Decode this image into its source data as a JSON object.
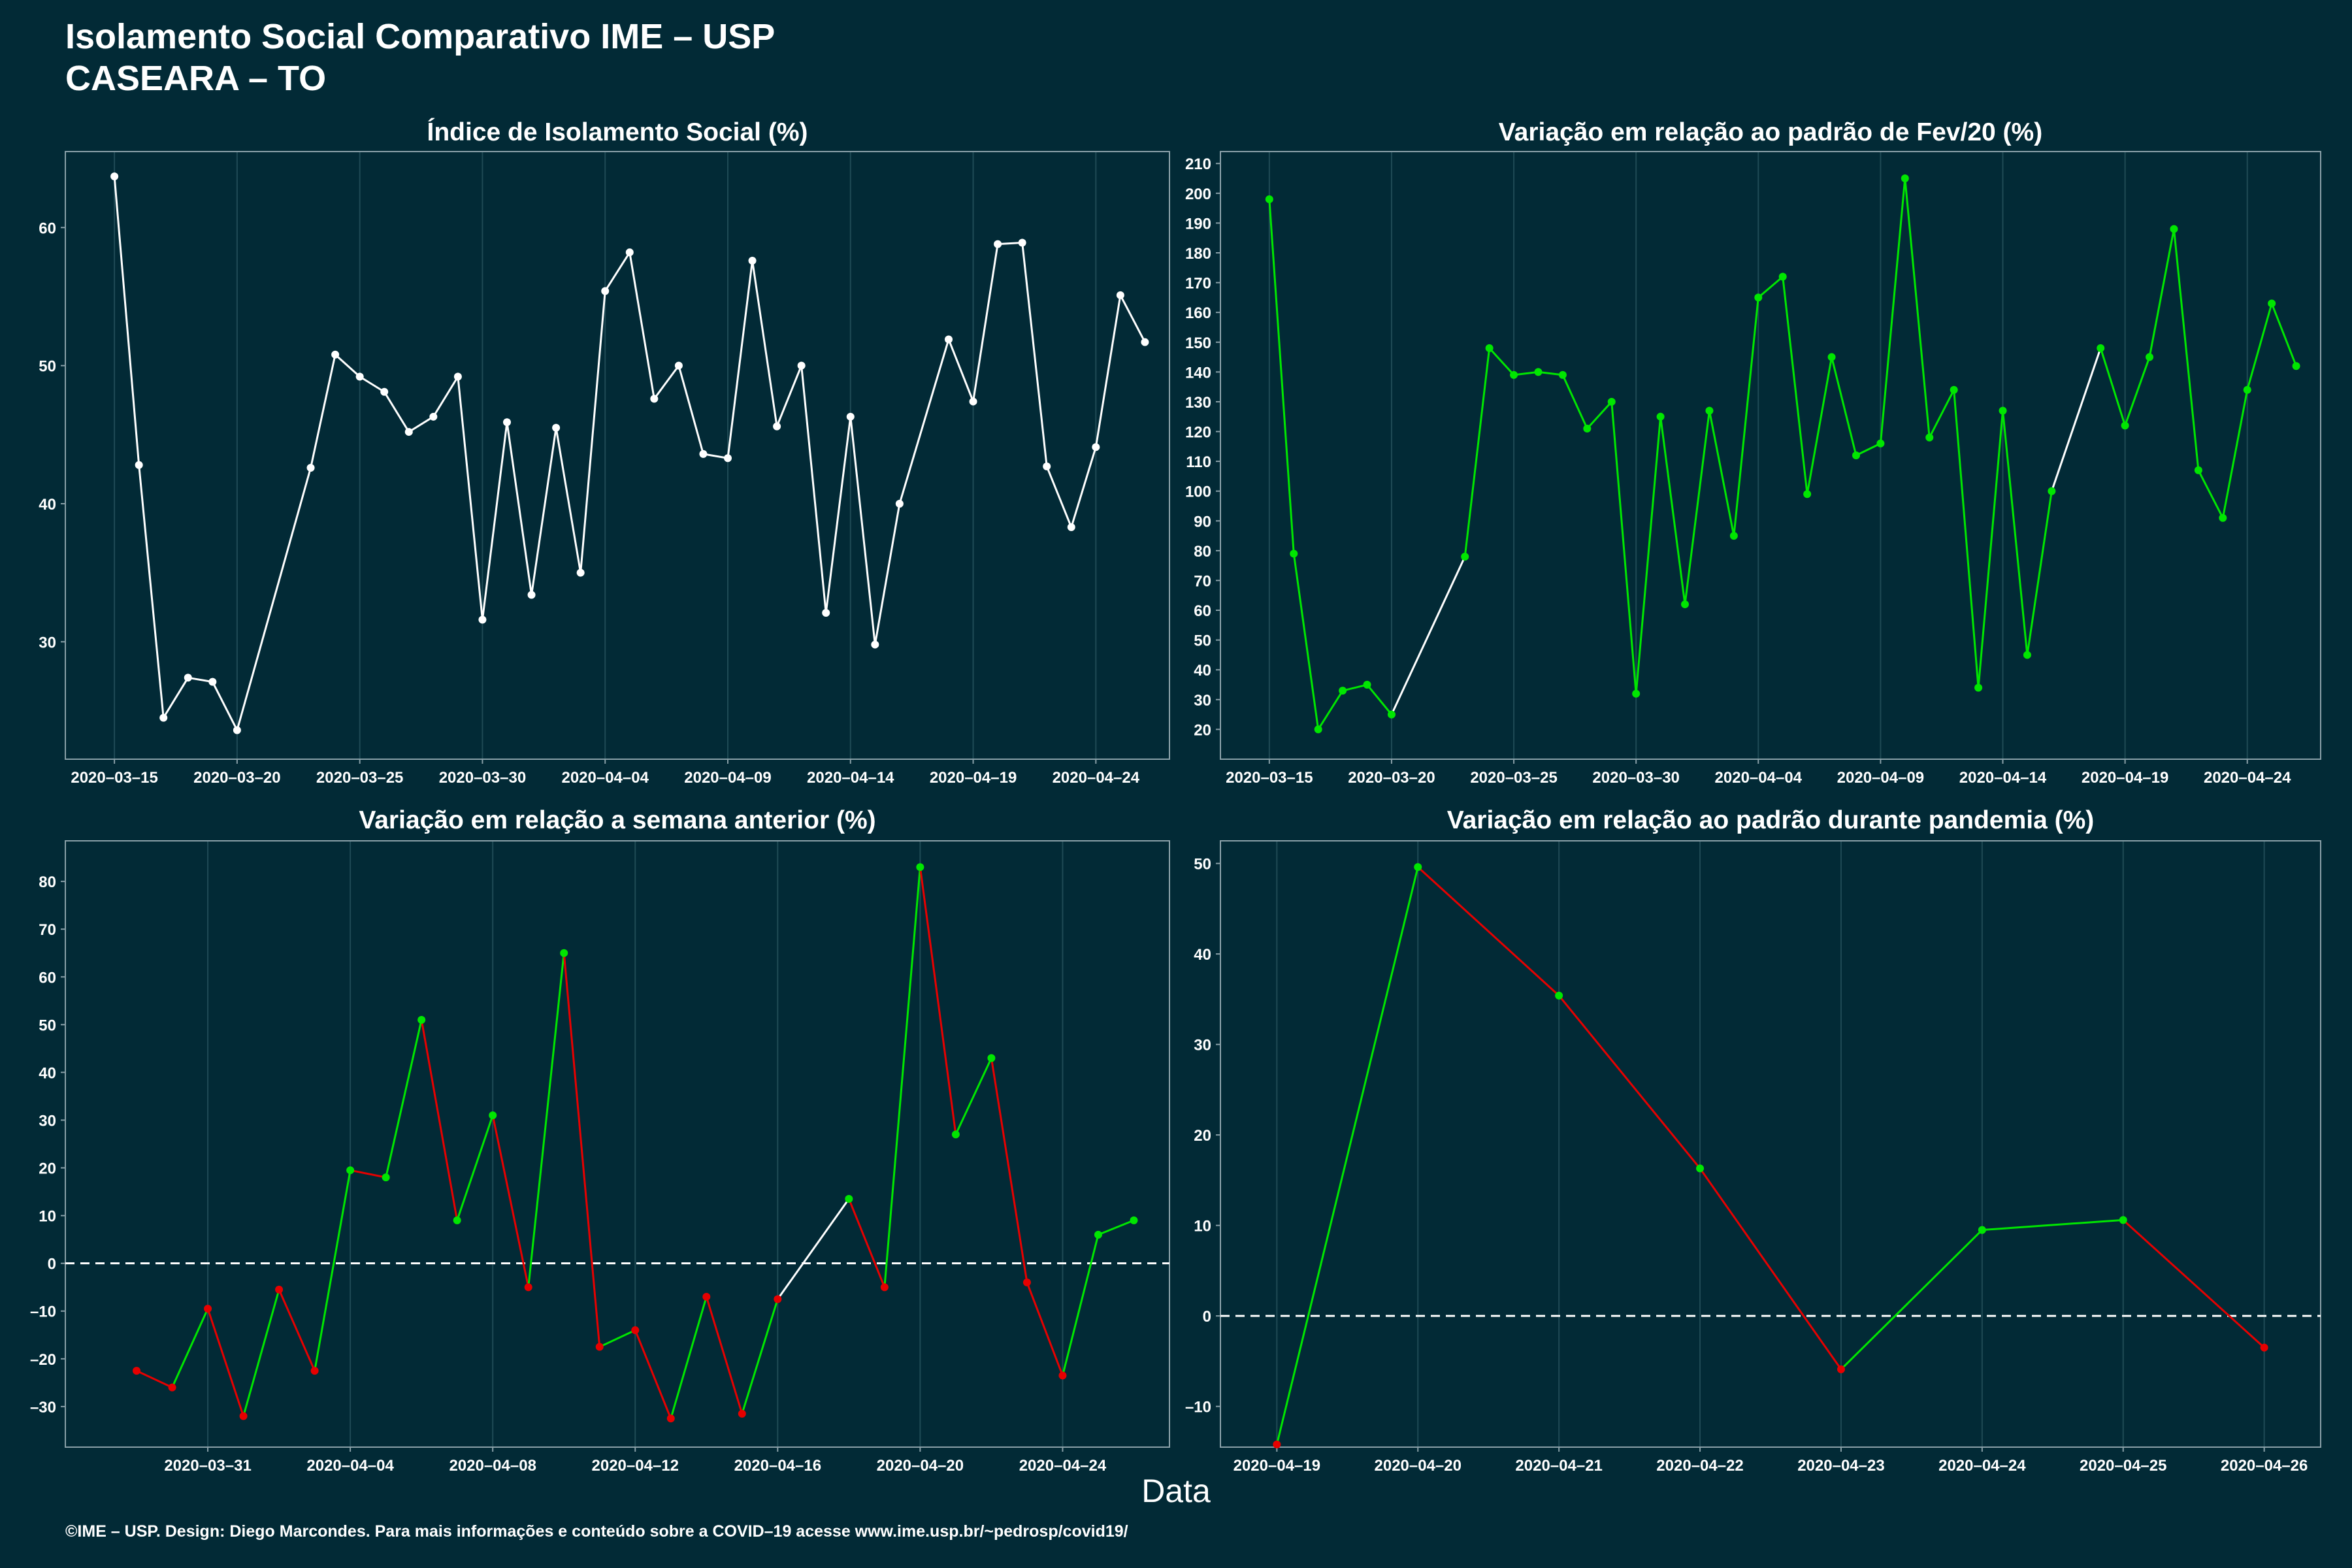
{
  "header": {
    "title_line1": "Isolamento Social Comparativo IME – USP",
    "title_line2": "CASEARA – TO"
  },
  "xlabel": "Data",
  "footer": "©IME – USP. Design: Diego Marcondes. Para mais informações e conteúdo sobre a COVID–19 acesse www.ime.usp.br/~pedrosp/covid19/",
  "colors": {
    "background": "#022a36",
    "neutral": "#ffffff",
    "positive": "#00e600",
    "negative": "#e60000",
    "grid": "#1f4a55",
    "axis": "#8aa0a8"
  },
  "chart_data": [
    {
      "id": "isolamento",
      "type": "line",
      "title": "Índice de Isolamento Social (%)",
      "color_mode": "neutral",
      "ylim": [
        21.5,
        65.5
      ],
      "yticks": [
        30,
        40,
        50,
        60
      ],
      "xlim": [
        "2020-03-13",
        "2020-04-27"
      ],
      "xticks": [
        "2020-03-15",
        "2020-03-20",
        "2020-03-25",
        "2020-03-30",
        "2020-04-04",
        "2020-04-09",
        "2020-04-14",
        "2020-04-19",
        "2020-04-24"
      ],
      "baseline": null,
      "grid": true,
      "x": [
        "2020-03-15",
        "2020-03-16",
        "2020-03-17",
        "2020-03-18",
        "2020-03-19",
        "2020-03-20",
        "2020-03-23",
        "2020-03-24",
        "2020-03-25",
        "2020-03-26",
        "2020-03-27",
        "2020-03-28",
        "2020-03-29",
        "2020-03-30",
        "2020-03-31",
        "2020-04-01",
        "2020-04-02",
        "2020-04-03",
        "2020-04-04",
        "2020-04-05",
        "2020-04-06",
        "2020-04-07",
        "2020-04-08",
        "2020-04-09",
        "2020-04-10",
        "2020-04-11",
        "2020-04-12",
        "2020-04-13",
        "2020-04-14",
        "2020-04-15",
        "2020-04-16",
        "2020-04-18",
        "2020-04-19",
        "2020-04-20",
        "2020-04-21",
        "2020-04-22",
        "2020-04-23",
        "2020-04-24",
        "2020-04-25",
        "2020-04-26"
      ],
      "y": [
        63.7,
        42.8,
        24.5,
        27.4,
        27.1,
        23.6,
        42.6,
        50.8,
        49.2,
        48.1,
        45.2,
        46.3,
        49.2,
        31.6,
        45.9,
        33.4,
        45.5,
        35.0,
        55.4,
        58.2,
        47.6,
        50.0,
        43.6,
        43.3,
        57.6,
        45.6,
        50.0,
        32.1,
        46.3,
        29.8,
        40.0,
        51.9,
        47.4,
        58.8,
        58.9,
        42.7,
        38.3,
        44.1,
        55.1,
        51.7
      ]
    },
    {
      "id": "fev20",
      "type": "line",
      "title": "Variação em relação ao padrão de Fev/20 (%)",
      "color_mode": "positive",
      "ylim": [
        10,
        214
      ],
      "yticks": [
        20,
        30,
        40,
        50,
        60,
        70,
        80,
        90,
        100,
        110,
        120,
        130,
        140,
        150,
        160,
        170,
        180,
        190,
        200,
        210
      ],
      "xlim": [
        "2020-03-13",
        "2020-04-27"
      ],
      "xticks": [
        "2020-03-15",
        "2020-03-20",
        "2020-03-25",
        "2020-03-30",
        "2020-04-04",
        "2020-04-09",
        "2020-04-14",
        "2020-04-19",
        "2020-04-24"
      ],
      "baseline": null,
      "grid": true,
      "x": [
        "2020-03-15",
        "2020-03-16",
        "2020-03-17",
        "2020-03-18",
        "2020-03-19",
        "2020-03-20",
        "2020-03-23",
        "2020-03-24",
        "2020-03-25",
        "2020-03-26",
        "2020-03-27",
        "2020-03-28",
        "2020-03-29",
        "2020-03-30",
        "2020-03-31",
        "2020-04-01",
        "2020-04-02",
        "2020-04-03",
        "2020-04-04",
        "2020-04-05",
        "2020-04-06",
        "2020-04-07",
        "2020-04-08",
        "2020-04-09",
        "2020-04-10",
        "2020-04-11",
        "2020-04-12",
        "2020-04-13",
        "2020-04-14",
        "2020-04-15",
        "2020-04-16",
        "2020-04-18",
        "2020-04-19",
        "2020-04-20",
        "2020-04-21",
        "2020-04-22",
        "2020-04-23",
        "2020-04-24",
        "2020-04-25",
        "2020-04-26"
      ],
      "y": [
        198,
        79,
        20,
        33,
        35,
        25,
        78,
        148,
        139,
        140,
        139,
        121,
        130,
        32,
        125,
        62,
        127,
        85,
        165,
        172,
        99,
        145,
        112,
        116,
        205,
        118,
        134,
        34,
        127,
        45,
        100,
        148,
        122,
        145,
        188,
        107,
        91,
        134,
        163,
        142
      ],
      "neutral_segments": [
        [
          5,
          6
        ],
        [
          30,
          31
        ]
      ]
    },
    {
      "id": "semana",
      "type": "line",
      "title": "Variação em relação a semana anterior (%)",
      "color_mode": "sign",
      "ylim": [
        -38.5,
        88.5
      ],
      "yticks": [
        -30,
        -20,
        -10,
        0,
        10,
        20,
        30,
        40,
        50,
        60,
        70,
        80
      ],
      "xlim": [
        "2020-03-27",
        "2020-04-27"
      ],
      "xticks": [
        "2020-03-31",
        "2020-04-04",
        "2020-04-08",
        "2020-04-12",
        "2020-04-16",
        "2020-04-20",
        "2020-04-24"
      ],
      "baseline": 0,
      "grid": true,
      "x": [
        "2020-03-29",
        "2020-03-30",
        "2020-03-31",
        "2020-04-01",
        "2020-04-02",
        "2020-04-03",
        "2020-04-04",
        "2020-04-05",
        "2020-04-06",
        "2020-04-07",
        "2020-04-08",
        "2020-04-09",
        "2020-04-10",
        "2020-04-11",
        "2020-04-12",
        "2020-04-13",
        "2020-04-14",
        "2020-04-15",
        "2020-04-16",
        "2020-04-18",
        "2020-04-19",
        "2020-04-20",
        "2020-04-21",
        "2020-04-22",
        "2020-04-23",
        "2020-04-24",
        "2020-04-25",
        "2020-04-26"
      ],
      "y": [
        -22.5,
        -26,
        -9.5,
        -32,
        -5.5,
        -22.5,
        19.5,
        18,
        51,
        9,
        31,
        -5,
        65,
        -17.5,
        -14,
        -32.5,
        -7,
        -31.5,
        -7.5,
        13.5,
        -5,
        83,
        27,
        43,
        -4,
        -23.5,
        6,
        9
      ],
      "neutral_segments": [
        [
          18,
          19
        ]
      ]
    },
    {
      "id": "pandemia",
      "type": "line",
      "title": "Variação em relação ao padrão durante pandemia (%)",
      "color_mode": "sign",
      "ylim": [
        -14.5,
        52.5
      ],
      "yticks": [
        -10,
        0,
        10,
        20,
        30,
        40,
        50
      ],
      "xlim": [
        "2020-04-19",
        "2020-04-26"
      ],
      "xpad": 0.4,
      "xticks": [
        "2020-04-19",
        "2020-04-20",
        "2020-04-21",
        "2020-04-22",
        "2020-04-23",
        "2020-04-24",
        "2020-04-25",
        "2020-04-26"
      ],
      "baseline": 0,
      "grid": true,
      "x": [
        "2020-04-19",
        "2020-04-20",
        "2020-04-21",
        "2020-04-22",
        "2020-04-23",
        "2020-04-24",
        "2020-04-25",
        "2020-04-26"
      ],
      "y": [
        -14.2,
        49.6,
        35.4,
        16.3,
        -5.9,
        9.5,
        10.6,
        -3.5
      ]
    }
  ]
}
